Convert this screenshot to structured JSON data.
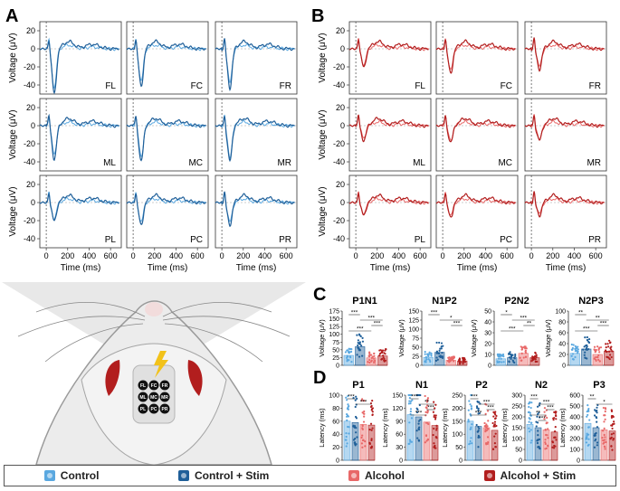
{
  "colors": {
    "control": "#5aa8e0",
    "control_stim": "#1f5f99",
    "alcohol": "#e86868",
    "alcohol_stim": "#b21e1e",
    "dashed": "#777777"
  },
  "panels": {
    "A": "A",
    "B": "B",
    "C": "C",
    "D": "D"
  },
  "legend": [
    {
      "label": "Control",
      "color": "#5aa8e0"
    },
    {
      "label": "Control + Stim",
      "color": "#1f5f99"
    },
    {
      "label": "Alcohol",
      "color": "#e86868"
    },
    {
      "label": "Alcohol + Stim",
      "color": "#b21e1e"
    }
  ],
  "chart_data": [
    {
      "type": "line",
      "panel": "A",
      "group": "Control vs Control + Stim",
      "ylabel": "Voltage (μV)",
      "xlabel": "Time (ms)",
      "yticks": [
        20,
        0,
        -20,
        -40
      ],
      "xticks": [
        0,
        200,
        400,
        600
      ],
      "ylim": [
        -50,
        30
      ],
      "xlim": [
        -60,
        700
      ],
      "electrodes": [
        "FL",
        "FC",
        "FR",
        "ML",
        "MC",
        "MR",
        "PL",
        "PC",
        "PR"
      ],
      "troughs": {
        "FL": -48,
        "FC": -40,
        "FR": -42,
        "ML": -36,
        "MC": -38,
        "MR": -38,
        "PL": -20,
        "PC": -24,
        "PR": -24
      }
    },
    {
      "type": "line",
      "panel": "B",
      "group": "Alcohol vs Alcohol + Stim",
      "ylabel": "Voltage (μV)",
      "xlabel": "Time (ms)",
      "yticks": [
        20,
        0,
        -20,
        -40
      ],
      "xticks": [
        0,
        200,
        400,
        600
      ],
      "ylim": [
        -50,
        30
      ],
      "xlim": [
        -60,
        700
      ],
      "electrodes": [
        "FL",
        "FC",
        "FR",
        "ML",
        "MC",
        "MR",
        "PL",
        "PC",
        "PR"
      ],
      "troughs": {
        "FL": -20,
        "FC": -26,
        "FR": -22,
        "ML": -16,
        "MC": -18,
        "MR": -16,
        "PL": -14,
        "PC": -16,
        "PR": -14
      }
    },
    {
      "type": "bar",
      "panel": "C",
      "title": "P1N1",
      "ylabel": "Voltage (μV)",
      "yticks": [
        0,
        25,
        50,
        75,
        100,
        125,
        150,
        175
      ],
      "ylim": [
        0,
        175
      ],
      "series": [
        {
          "name": "Control",
          "mean": 32
        },
        {
          "name": "Control + Stim",
          "mean": 60
        },
        {
          "name": "Alcohol",
          "mean": 24
        },
        {
          "name": "Alcohol + Stim",
          "mean": 30
        }
      ],
      "significance": [
        "***",
        "***",
        "***",
        "***"
      ]
    },
    {
      "type": "bar",
      "panel": "C",
      "title": "N1P2",
      "ylabel": "Voltage (μV)",
      "yticks": [
        0,
        25,
        50,
        75,
        100,
        125,
        150
      ],
      "ylim": [
        0,
        150
      ],
      "series": [
        {
          "name": "Control",
          "mean": 22
        },
        {
          "name": "Control + Stim",
          "mean": 36
        },
        {
          "name": "Alcohol",
          "mean": 14
        },
        {
          "name": "Alcohol + Stim",
          "mean": 12
        }
      ],
      "significance": [
        "***",
        "*",
        "***"
      ]
    },
    {
      "type": "bar",
      "panel": "C",
      "title": "P2N2",
      "ylabel": "Voltage (μV)",
      "yticks": [
        0,
        10,
        20,
        30,
        40,
        50
      ],
      "ylim": [
        0,
        50
      ],
      "series": [
        {
          "name": "Control",
          "mean": 6
        },
        {
          "name": "Control + Stim",
          "mean": 7
        },
        {
          "name": "Alcohol",
          "mean": 11
        },
        {
          "name": "Alcohol + Stim",
          "mean": 7
        }
      ],
      "significance": [
        "*",
        "***",
        "**",
        "***"
      ]
    },
    {
      "type": "bar",
      "panel": "C",
      "title": "N2P3",
      "ylabel": "Voltage (μV)",
      "yticks": [
        0,
        20,
        40,
        60,
        80,
        100
      ],
      "ylim": [
        0,
        100
      ],
      "series": [
        {
          "name": "Control",
          "mean": 22
        },
        {
          "name": "Control + Stim",
          "mean": 30
        },
        {
          "name": "Alcohol",
          "mean": 20
        },
        {
          "name": "Alcohol + Stim",
          "mean": 26
        }
      ],
      "significance": [
        "**",
        "**",
        "***",
        "***"
      ]
    },
    {
      "type": "bar",
      "panel": "D",
      "title": "P1",
      "ylabel": "Latency (ms)",
      "yticks": [
        0,
        20,
        40,
        60,
        80,
        100
      ],
      "ylim": [
        0,
        100
      ],
      "series": [
        {
          "name": "Control",
          "mean": 60
        },
        {
          "name": "Control + Stim",
          "mean": 58
        },
        {
          "name": "Alcohol",
          "mean": 55
        },
        {
          "name": "Alcohol + Stim",
          "mean": 54
        }
      ],
      "significance": [
        "***",
        "***"
      ]
    },
    {
      "type": "bar",
      "panel": "D",
      "title": "N1",
      "ylabel": "Latency (ms)",
      "yticks": [
        0,
        30,
        60,
        90,
        120,
        150
      ],
      "ylim": [
        0,
        150
      ],
      "series": [
        {
          "name": "Control",
          "mean": 105
        },
        {
          "name": "Control + Stim",
          "mean": 100
        },
        {
          "name": "Alcohol",
          "mean": 88
        },
        {
          "name": "Alcohol + Stim",
          "mean": 80
        }
      ],
      "significance": [
        "***",
        "**",
        "***",
        "***"
      ]
    },
    {
      "type": "bar",
      "panel": "D",
      "title": "P2",
      "ylabel": "Latency (ms)",
      "yticks": [
        0,
        50,
        100,
        150,
        200,
        250
      ],
      "ylim": [
        0,
        250
      ],
      "series": [
        {
          "name": "Control",
          "mean": 150
        },
        {
          "name": "Control + Stim",
          "mean": 130
        },
        {
          "name": "Alcohol",
          "mean": 125
        },
        {
          "name": "Alcohol + Stim",
          "mean": 115
        }
      ],
      "significance": [
        "***",
        "***",
        "***",
        "***"
      ]
    },
    {
      "type": "bar",
      "panel": "D",
      "title": "N2",
      "ylabel": "Latency (ms)",
      "yticks": [
        0,
        50,
        100,
        150,
        200,
        250,
        300
      ],
      "ylim": [
        0,
        300
      ],
      "series": [
        {
          "name": "Control",
          "mean": 165
        },
        {
          "name": "Control + Stim",
          "mean": 150
        },
        {
          "name": "Alcohol",
          "mean": 140
        },
        {
          "name": "Alcohol + Stim",
          "mean": 130
        }
      ],
      "significance": [
        "***",
        "***",
        "***",
        "**",
        "***"
      ]
    },
    {
      "type": "bar",
      "panel": "D",
      "title": "P3",
      "ylabel": "Latency (ms)",
      "yticks": [
        0,
        100,
        200,
        300,
        400,
        500,
        600
      ],
      "ylim": [
        0,
        600
      ],
      "series": [
        {
          "name": "Control",
          "mean": 340
        },
        {
          "name": "Control + Stim",
          "mean": 300
        },
        {
          "name": "Alcohol",
          "mean": 280
        },
        {
          "name": "Alcohol + Stim",
          "mean": 270
        }
      ],
      "significance": [
        "**",
        "*"
      ]
    }
  ]
}
